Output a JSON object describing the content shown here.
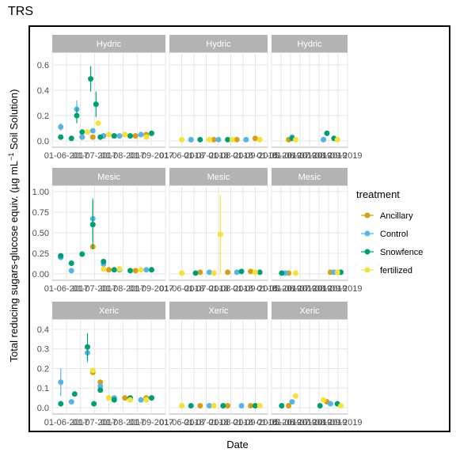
{
  "title": "TRS",
  "xlabel": "Date",
  "ylabel_main": "Total reducing sugars-glucose equiv. (",
  "ylabel_unit": "µg mL",
  "ylabel_exp": "−1",
  "ylabel_tail": " Soil Solution)",
  "legend": {
    "title": "treatment",
    "entries": [
      {
        "label": "Ancillary",
        "color": "#d4a017"
      },
      {
        "label": "Control",
        "color": "#56b4e9"
      },
      {
        "label": "Snowfence",
        "color": "#009e73"
      },
      {
        "label": "fertilized",
        "color": "#f6e03a"
      }
    ]
  },
  "colors": {
    "strip": "#b3b3b3",
    "grid": "#e6e6e6"
  },
  "chart_data": {
    "type": "scatter",
    "facets": {
      "rows": [
        "Hydric",
        "Mesic",
        "Xeric"
      ],
      "columns": 3
    },
    "ylim": {
      "Hydric": [
        0,
        0.65
      ],
      "Mesic": [
        0,
        1.0
      ],
      "Xeric": [
        0,
        0.42
      ]
    },
    "yticks": {
      "Hydric": [
        "0.0",
        "0.2",
        "0.4",
        "0.6"
      ],
      "Mesic": [
        "0.00",
        "0.25",
        "0.50",
        "0.75",
        "1.00"
      ],
      "Xeric": [
        "0.0",
        "0.1",
        "0.2",
        "0.3",
        "0.4"
      ]
    },
    "xtick_labels": [
      [
        "01-06-2017",
        "01-07-2017",
        "01-08-2017",
        "01-09-2017"
      ],
      [
        "01-06-2018",
        "01-07-2018",
        "01-08-2018",
        "01-09-2018"
      ],
      [
        "01-05-2019",
        "01-06-2019",
        "01-07-2019",
        "01-08-2019",
        "01-09-2019"
      ]
    ],
    "series": [
      {
        "name": "Ancillary",
        "panels": {
          "Hydric-1": [
            [
              0.25,
              0.03
            ],
            [
              0.35,
              0.03
            ],
            [
              0.45,
              0.04
            ],
            [
              0.55,
              0.04
            ],
            [
              0.65,
              0.05
            ],
            [
              0.75,
              0.04
            ],
            [
              0.85,
              0.05
            ]
          ],
          "Hydric-2": [
            [
              0.2,
              0.01
            ],
            [
              0.45,
              0.01
            ],
            [
              0.7,
              0.01
            ],
            [
              0.9,
              0.02
            ]
          ],
          "Hydric-3": [
            [
              0.2,
              0.01
            ],
            [
              0.7,
              0.01
            ]
          ],
          "Mesic-1": [
            [
              0.35,
              0.33
            ],
            [
              0.5,
              0.05
            ],
            [
              0.6,
              0.05
            ],
            [
              0.75,
              0.04
            ],
            [
              0.9,
              0.05
            ]
          ],
          "Mesic-2": [
            [
              0.3,
              0.02
            ],
            [
              0.6,
              0.02
            ],
            [
              0.85,
              0.03
            ]
          ],
          "Mesic-3": [
            [
              0.2,
              0.01
            ],
            [
              0.8,
              0.02
            ]
          ],
          "Xeric-1": [
            [
              0.35,
              0.18
            ],
            [
              0.42,
              0.13
            ],
            [
              0.5,
              0.05
            ],
            [
              0.65,
              0.05
            ],
            [
              0.85,
              0.05
            ]
          ],
          "Xeric-2": [
            [
              0.3,
              0.01
            ],
            [
              0.6,
              0.01
            ],
            [
              0.85,
              0.01
            ]
          ],
          "Xeric-3": [
            [
              0.2,
              0.01
            ],
            [
              0.75,
              0.03
            ]
          ]
        }
      },
      {
        "name": "Control",
        "panels": {
          "Hydric-1": [
            [
              0.05,
              0.11,
              0.03
            ],
            [
              0.2,
              0.25,
              0.07
            ],
            [
              0.25,
              0.03
            ],
            [
              0.35,
              0.08
            ],
            [
              0.45,
              0.04
            ],
            [
              0.6,
              0.04
            ],
            [
              0.8,
              0.05
            ]
          ],
          "Hydric-2": [
            [
              0.2,
              0.01
            ],
            [
              0.5,
              0.01
            ],
            [
              0.8,
              0.01
            ]
          ],
          "Hydric-3": [
            [
              0.25,
              0.03
            ],
            [
              0.7,
              0.01
            ]
          ],
          "Mesic-1": [
            [
              0.05,
              0.2,
              0.03
            ],
            [
              0.15,
              0.04
            ],
            [
              0.35,
              0.67,
              0.25
            ],
            [
              0.45,
              0.12
            ],
            [
              0.6,
              0.05
            ],
            [
              0.85,
              0.05
            ]
          ],
          "Mesic-2": [
            [
              0.4,
              0.02
            ],
            [
              0.7,
              0.02
            ]
          ],
          "Mesic-3": [
            [
              0.15,
              0.01
            ],
            [
              0.85,
              0.02
            ]
          ],
          "Xeric-1": [
            [
              0.05,
              0.13,
              0.07
            ],
            [
              0.15,
              0.03
            ],
            [
              0.3,
              0.28,
              0.05
            ],
            [
              0.42,
              0.11
            ],
            [
              0.55,
              0.05
            ],
            [
              0.8,
              0.04
            ]
          ],
          "Xeric-2": [
            [
              0.4,
              0.01
            ],
            [
              0.75,
              0.01
            ]
          ],
          "Xeric-3": [
            [
              0.25,
              0.03
            ],
            [
              0.8,
              0.02
            ]
          ]
        }
      },
      {
        "name": "Snowfence",
        "panels": {
          "Hydric-1": [
            [
              0.05,
              0.03
            ],
            [
              0.15,
              0.02
            ],
            [
              0.2,
              0.2,
              0.06
            ],
            [
              0.25,
              0.07
            ],
            [
              0.33,
              0.49,
              0.1
            ],
            [
              0.38,
              0.29,
              0.1
            ],
            [
              0.42,
              0.03
            ],
            [
              0.55,
              0.04
            ],
            [
              0.7,
              0.04
            ],
            [
              0.9,
              0.06
            ]
          ],
          "Hydric-2": [
            [
              0.3,
              0.01
            ],
            [
              0.6,
              0.01
            ]
          ],
          "Hydric-3": [
            [
              0.25,
              0.02
            ],
            [
              0.75,
              0.06
            ],
            [
              0.85,
              0.02
            ]
          ],
          "Mesic-1": [
            [
              0.05,
              0.22
            ],
            [
              0.15,
              0.13
            ],
            [
              0.25,
              0.24
            ],
            [
              0.35,
              0.6,
              0.3
            ],
            [
              0.45,
              0.15
            ],
            [
              0.55,
              0.05
            ],
            [
              0.7,
              0.04
            ],
            [
              0.9,
              0.05
            ]
          ],
          "Mesic-2": [
            [
              0.25,
              0.01
            ],
            [
              0.75,
              0.03
            ],
            [
              0.95,
              0.02
            ]
          ],
          "Mesic-3": [
            [
              0.1,
              0.01
            ],
            [
              0.95,
              0.02
            ]
          ],
          "Xeric-1": [
            [
              0.05,
              0.02
            ],
            [
              0.18,
              0.07
            ],
            [
              0.3,
              0.31,
              0.07
            ],
            [
              0.36,
              0.02
            ],
            [
              0.42,
              0.09
            ],
            [
              0.55,
              0.04
            ],
            [
              0.7,
              0.05
            ],
            [
              0.9,
              0.05
            ]
          ],
          "Xeric-2": [
            [
              0.2,
              0.01
            ],
            [
              0.55,
              0.01
            ],
            [
              0.9,
              0.01
            ]
          ],
          "Xeric-3": [
            [
              0.1,
              0.01
            ],
            [
              0.65,
              0.01
            ],
            [
              0.9,
              0.02
            ]
          ]
        }
      },
      {
        "name": "fertilized",
        "panels": {
          "Hydric-1": [
            [
              0.3,
              0.07
            ],
            [
              0.4,
              0.14
            ],
            [
              0.5,
              0.05
            ],
            [
              0.65,
              0.05
            ],
            [
              0.85,
              0.03
            ]
          ],
          "Hydric-2": [
            [
              0.1,
              0.01
            ],
            [
              0.4,
              0.01
            ],
            [
              0.65,
              0.01
            ],
            [
              0.95,
              0.01
            ]
          ],
          "Hydric-3": [
            [
              0.3,
              0.01
            ],
            [
              0.9,
              0.01
            ]
          ],
          "Mesic-1": [
            [
              0.45,
              0.06
            ],
            [
              0.6,
              0.06
            ],
            [
              0.8,
              0.05
            ]
          ],
          "Mesic-2": [
            [
              0.1,
              0.01
            ],
            [
              0.45,
              0.01
            ],
            [
              0.52,
              0.48,
              0.48
            ],
            [
              0.9,
              0.02
            ]
          ],
          "Mesic-3": [
            [
              0.3,
              0.01
            ],
            [
              0.9,
              0.02
            ]
          ],
          "Xeric-1": [
            [
              0.35,
              0.19
            ],
            [
              0.5,
              0.05
            ],
            [
              0.7,
              0.04
            ],
            [
              0.85,
              0.04
            ]
          ],
          "Xeric-2": [
            [
              0.1,
              0.01
            ],
            [
              0.45,
              0.01
            ],
            [
              0.95,
              0.01
            ]
          ],
          "Xeric-3": [
            [
              0.3,
              0.06
            ],
            [
              0.7,
              0.04
            ],
            [
              0.95,
              0.01
            ]
          ]
        }
      }
    ]
  }
}
